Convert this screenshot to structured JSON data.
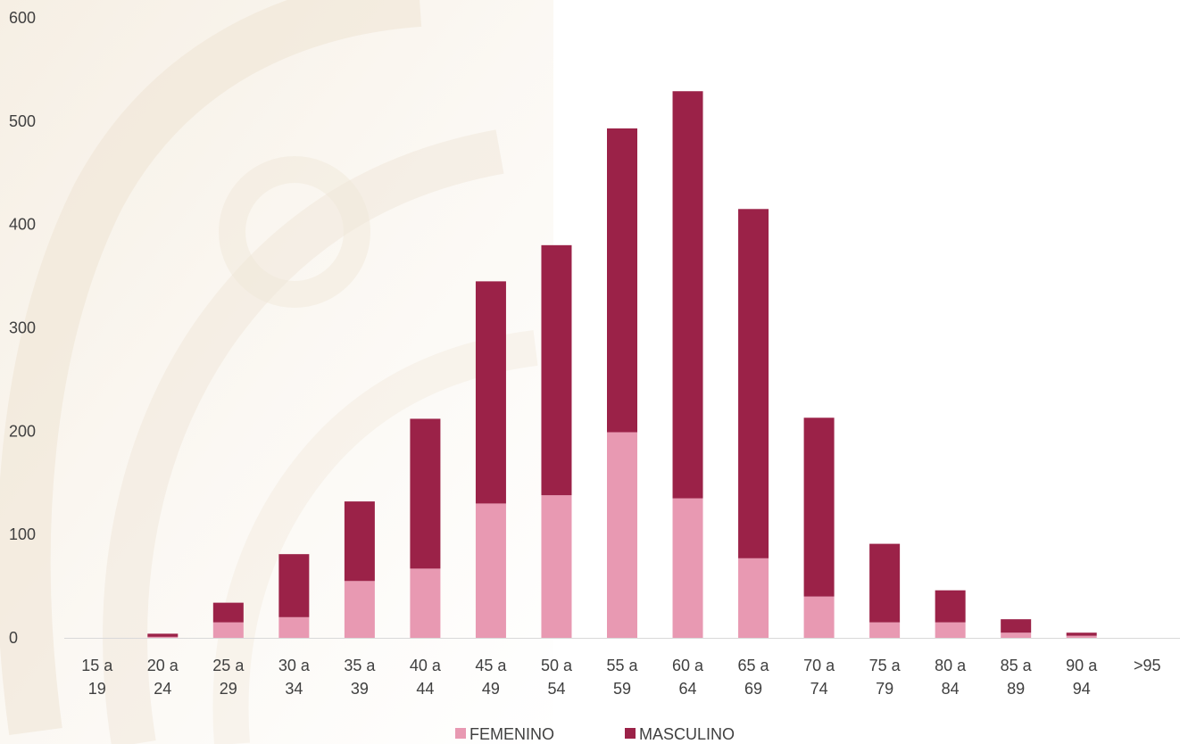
{
  "chart_data": {
    "type": "bar",
    "stacked": true,
    "categories": [
      [
        "15 a",
        "19"
      ],
      [
        "20 a",
        "24"
      ],
      [
        "25 a",
        "29"
      ],
      [
        "30 a",
        "34"
      ],
      [
        "35 a",
        "39"
      ],
      [
        "40 a",
        "44"
      ],
      [
        "45 a",
        "49"
      ],
      [
        "50 a",
        "54"
      ],
      [
        "55 a",
        "59"
      ],
      [
        "60 a",
        "64"
      ],
      [
        "65 a",
        "69"
      ],
      [
        "70 a",
        "74"
      ],
      [
        "75 a",
        "79"
      ],
      [
        "80 a",
        "84"
      ],
      [
        "85 a",
        "89"
      ],
      [
        "90 a",
        "94"
      ],
      [
        ">95"
      ]
    ],
    "series": [
      {
        "name": "FEMENINO",
        "color": "#e899b2",
        "values": [
          0,
          1,
          15,
          20,
          55,
          67,
          130,
          138,
          199,
          135,
          77,
          40,
          15,
          15,
          5,
          2,
          0
        ]
      },
      {
        "name": "MASCULINO",
        "color": "#9b2248",
        "values": [
          0,
          3,
          19,
          61,
          77,
          145,
          215,
          242,
          294,
          394,
          338,
          173,
          76,
          31,
          13,
          3,
          0
        ]
      }
    ],
    "y_ticks": [
      "0",
      "100",
      "200",
      "300",
      "400",
      "500",
      "600"
    ],
    "ylim": [
      0,
      600
    ],
    "legend_position": "bottom",
    "grid": false,
    "title": "",
    "xlabel": "",
    "ylabel": ""
  }
}
